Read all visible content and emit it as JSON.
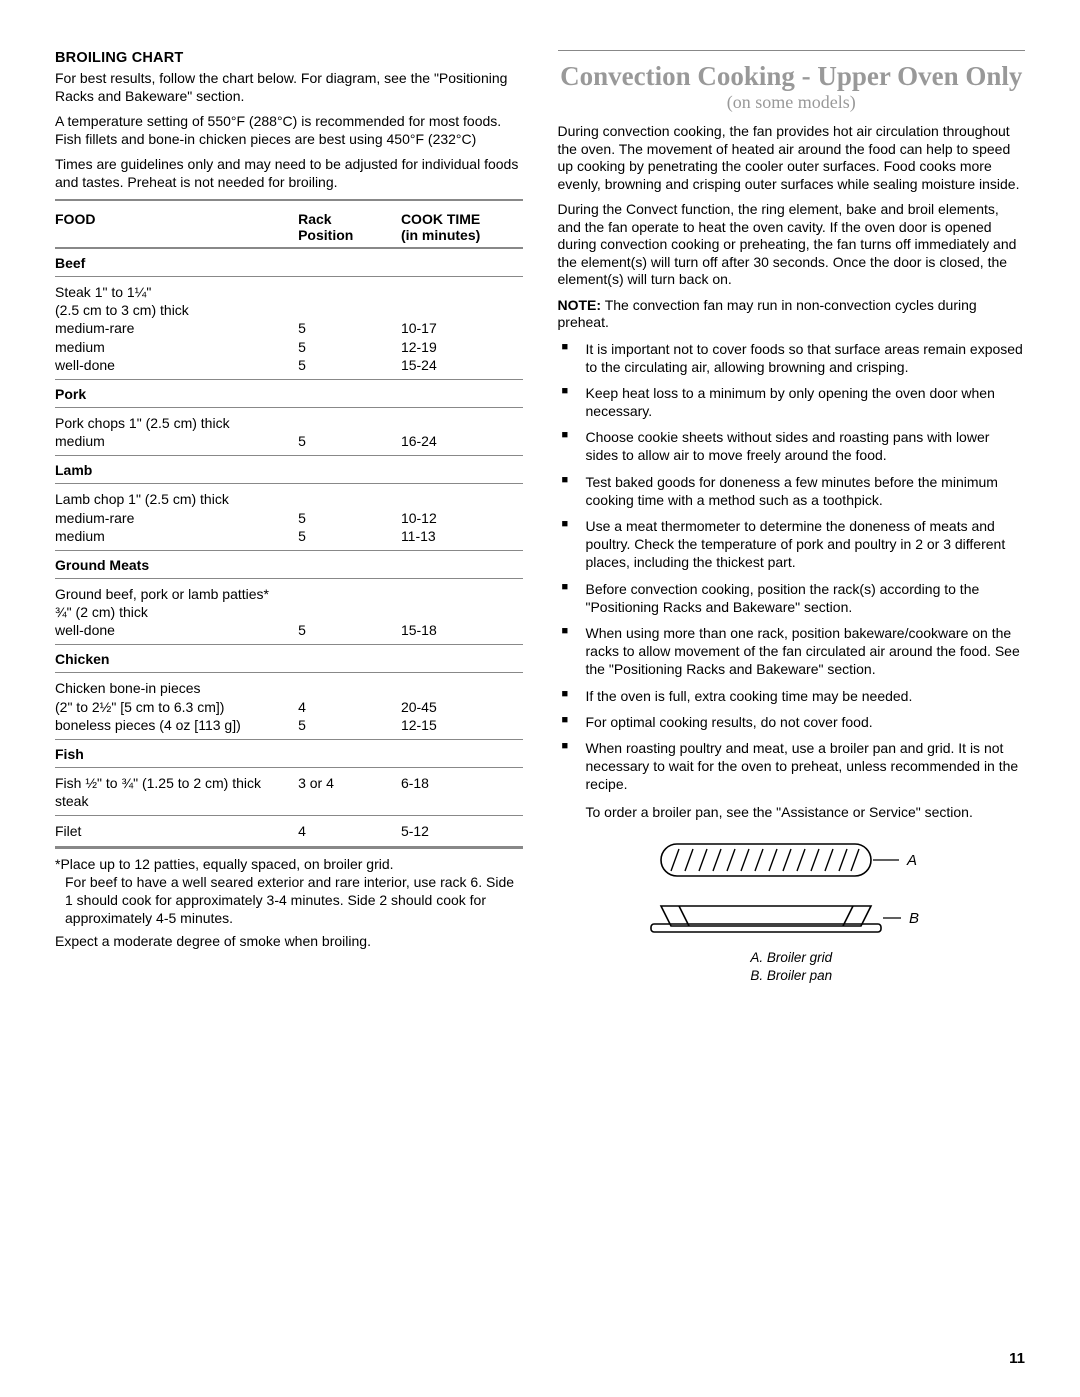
{
  "left": {
    "heading": "BROILING CHART",
    "intro1": "For best results, follow the chart below. For diagram, see the \"Positioning Racks and Bakeware\" section.",
    "intro2": "A temperature setting of 550°F (288°C) is recommended for most foods. Fish fillets and bone-in chicken pieces are best using 450°F (232°C)",
    "intro3": "Times are guidelines only and may need to be adjusted for individual foods and tastes. Preheat is not needed for broiling.",
    "headers": {
      "food": "FOOD",
      "rack1": "Rack",
      "rack2": "Position",
      "time1": "COOK TIME",
      "time2": "(in minutes)"
    },
    "rows": [
      {
        "cat": "Beef"
      },
      {
        "food": "Steak 1\" to 1¼\"\n(2.5 cm to 3 cm) thick\nmedium-rare\nmedium\nwell-done",
        "rack": "\n\n5\n5\n5",
        "time": "\n\n10-17\n12-19\n15-24"
      },
      {
        "cat": "Pork"
      },
      {
        "food": "Pork chops 1\" (2.5 cm) thick\nmedium",
        "rack": "\n5",
        "time": "\n16-24"
      },
      {
        "cat": "Lamb"
      },
      {
        "food": "Lamb chop 1\" (2.5 cm) thick\nmedium-rare\nmedium",
        "rack": "\n5\n5",
        "time": "\n10-12\n11-13"
      },
      {
        "cat": "Ground Meats"
      },
      {
        "food": "Ground beef, pork or lamb patties*\n¾\" (2 cm) thick\nwell-done",
        "rack": "\n\n5",
        "time": "\n\n15-18"
      },
      {
        "cat": "Chicken"
      },
      {
        "food": "Chicken bone-in pieces\n(2\" to 2½\" [5 cm to 6.3 cm])\nboneless pieces (4 oz [113 g])",
        "rack": "\n4\n5",
        "time": "\n20-45\n12-15"
      },
      {
        "cat": "Fish"
      },
      {
        "food": "Fish ½\" to ¾\" (1.25 to 2 cm) thick steak",
        "rack": "3 or 4",
        "time": "6-18"
      },
      {
        "food": "Filet",
        "rack": "4",
        "time": "5-12"
      }
    ],
    "foot1a": "*Place up to 12 patties, equally spaced, on broiler grid.",
    "foot1b": "For beef to have a well seared exterior and rare interior, use rack 6. Side 1 should cook for approximately 3-4 minutes. Side 2 should cook for approximately 4-5 minutes.",
    "foot2": "Expect a moderate degree of smoke when broiling."
  },
  "right": {
    "title": "Convection Cooking - Upper Oven Only",
    "subtitle": "(on some models)",
    "p1": "During convection cooking, the fan provides hot air circulation throughout the oven. The movement of heated air around the food can help to speed up cooking by penetrating the cooler outer surfaces. Food cooks more evenly, browning and crisping outer surfaces while sealing moisture inside.",
    "p2": "During the Convect function, the ring element, bake and broil elements, and the fan operate to heat the oven cavity. If the oven door is opened during convection cooking or preheating, the fan turns off immediately and the element(s) will turn off after 30 seconds. Once the door is closed, the element(s) will turn back on.",
    "noteLabel": "NOTE:",
    "noteText": " The convection fan may run in non-convection cycles during preheat.",
    "bullets": [
      "It is important not to cover foods so that surface areas remain exposed to the circulating air, allowing browning and crisping.",
      "Keep heat loss to a minimum by only opening the oven door when necessary.",
      "Choose cookie sheets without sides and roasting pans with lower sides to allow air to move freely around the food.",
      "Test baked goods for doneness a few minutes before the minimum cooking time with a method such as a toothpick.",
      "Use a meat thermometer to determine the doneness of meats and poultry. Check the temperature of pork and poultry in 2 or 3 different places, including the thickest part.",
      "Before convection cooking, position the rack(s) according to the \"Positioning Racks and Bakeware\" section.",
      "When using more than one rack, position bakeware/cookware on the racks to allow movement of the fan circulated air around the food. See the \"Positioning Racks and Bakeware\" section.",
      "If the oven is full, extra cooking time may be needed.",
      "For optimal cooking results, do not cover food.",
      "When roasting poultry and meat, use a broiler pan and grid. It is not necessary to wait for the oven to preheat, unless recommended in the recipe."
    ],
    "order": "To order a broiler pan, see the \"Assistance or Service\" section.",
    "labelA": "A",
    "labelB": "B",
    "captionA": "A. Broiler grid",
    "captionB": "B. Broiler pan"
  },
  "pageNumber": "11"
}
